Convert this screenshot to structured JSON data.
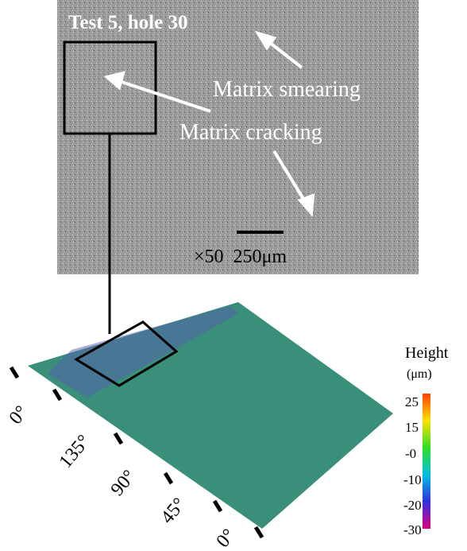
{
  "micrograph": {
    "title": "Test 5, hole 30",
    "labels": [
      "Matrix smearing",
      "Matrix cracking"
    ],
    "scale": "×50  250μm"
  },
  "surface": {
    "angles": [
      "0°",
      "135°",
      "90°",
      "45°",
      "0°"
    ]
  },
  "colorbar": {
    "title": "Height",
    "unit": "(μm)",
    "ticks": [
      "25",
      "15",
      "-0",
      "-10",
      "-20",
      "-30"
    ]
  }
}
